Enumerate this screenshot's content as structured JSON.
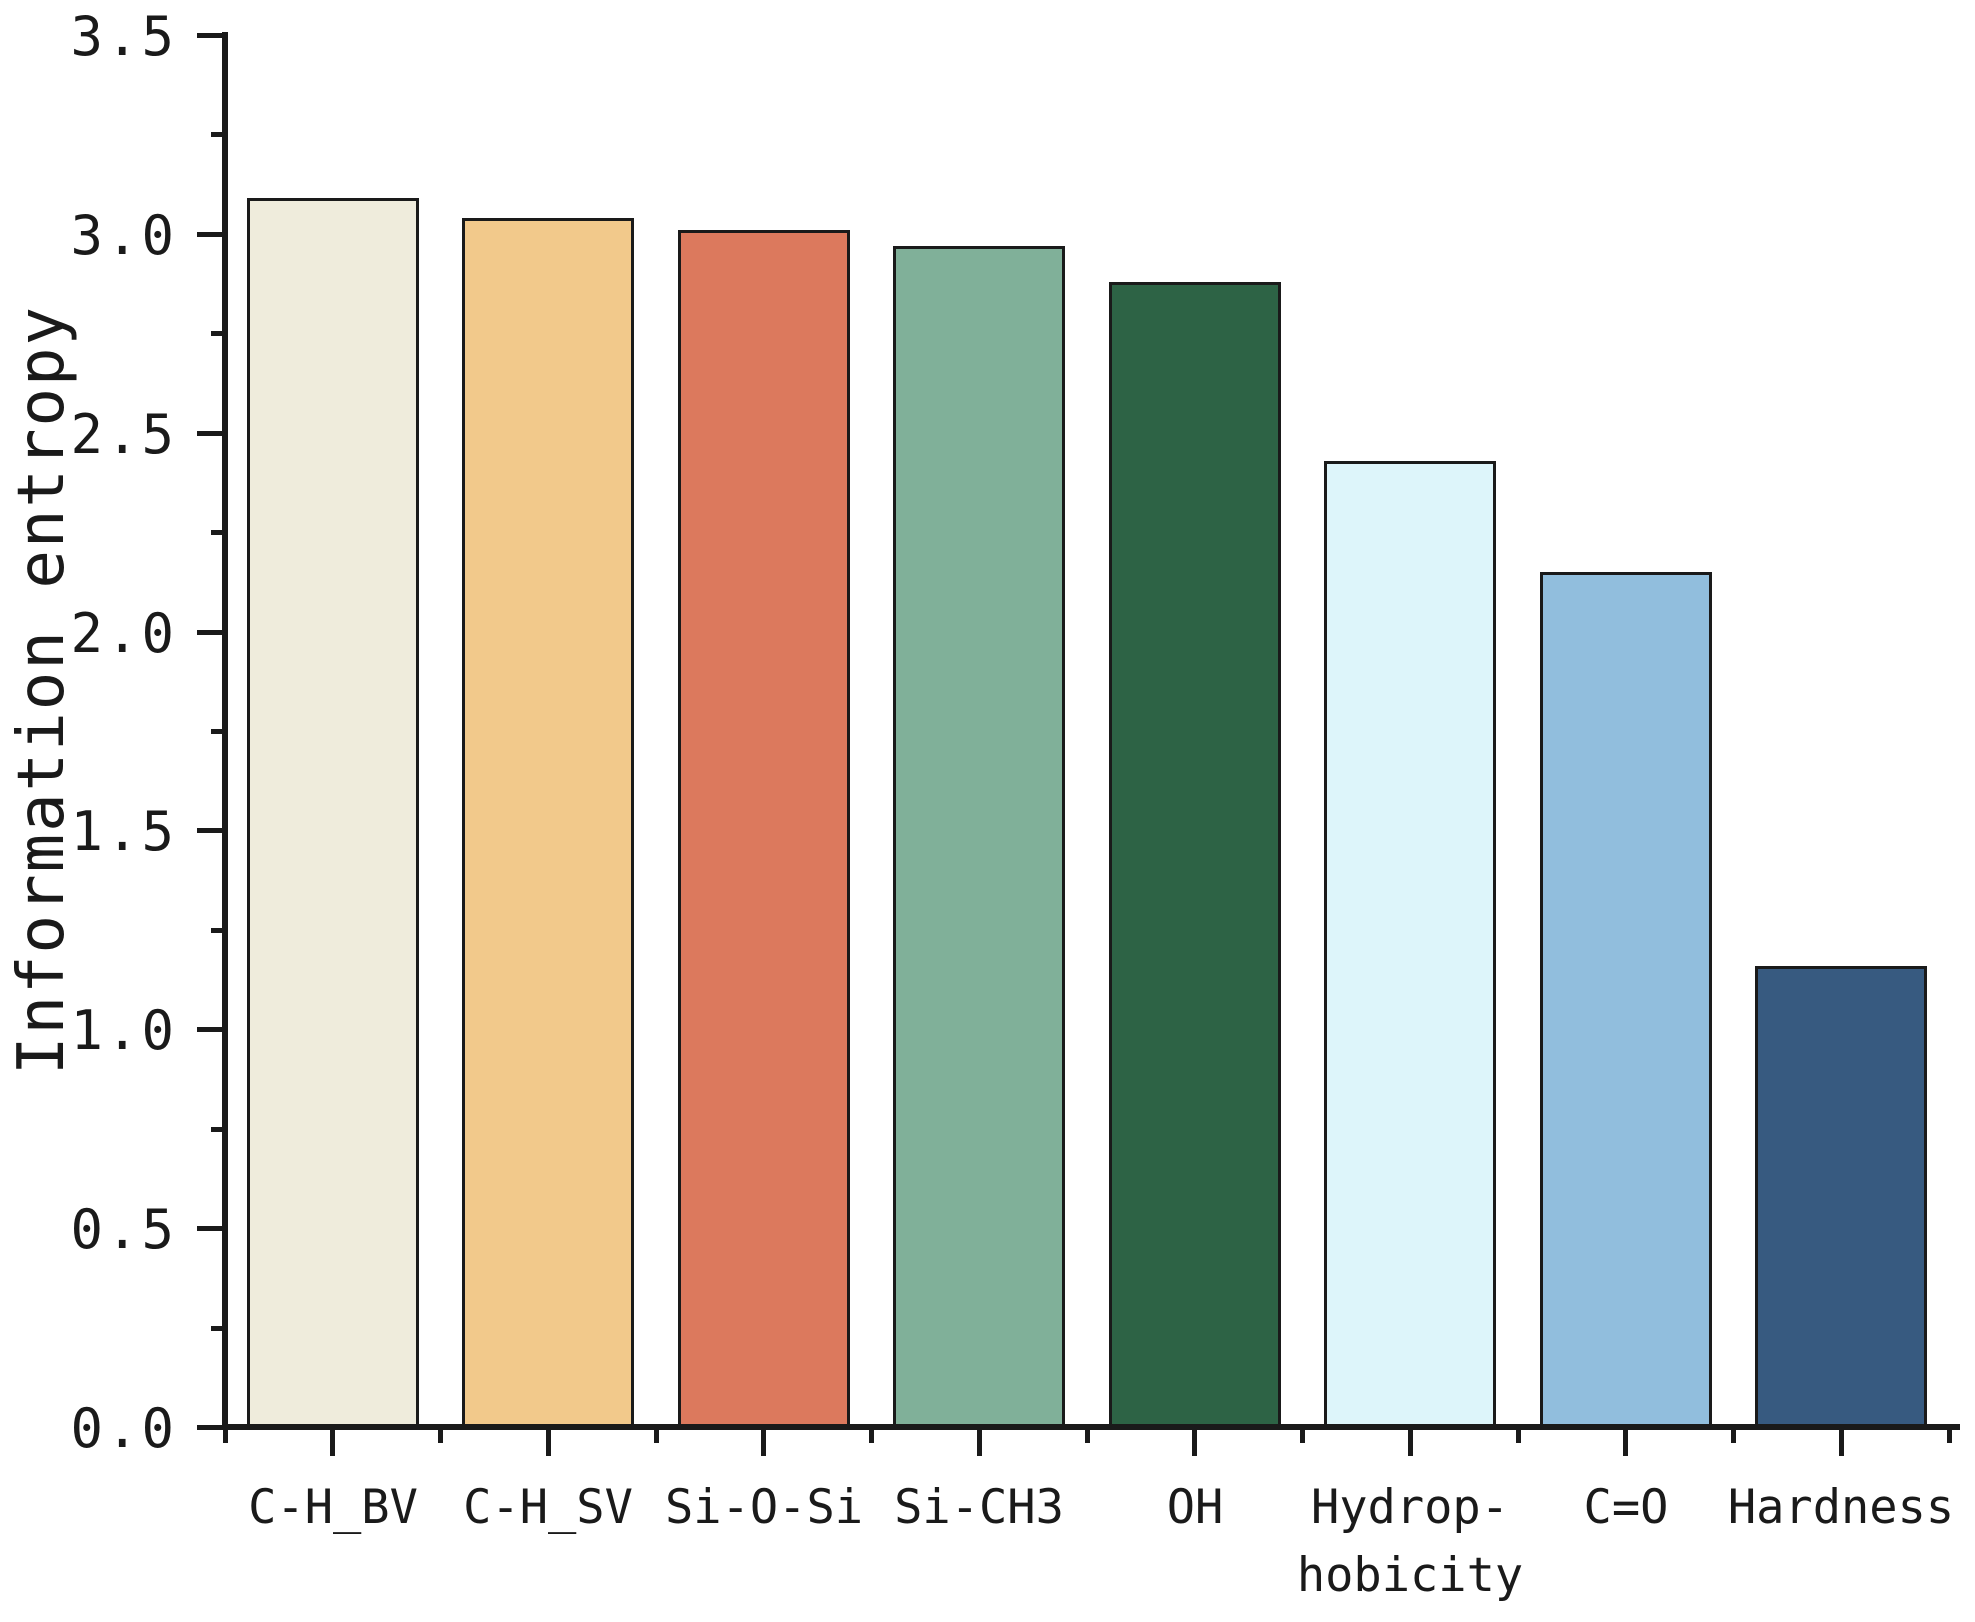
{
  "chart_data": {
    "type": "bar",
    "title": "",
    "xlabel": "",
    "ylabel": "Information entropy",
    "categories": [
      "C-H_BV",
      "C-H_SV",
      "Si-O-Si",
      "Si-CH3",
      "OH",
      "Hydrop-\nhobicity",
      "C=O",
      "Hardness"
    ],
    "values": [
      3.09,
      3.04,
      3.01,
      2.97,
      2.88,
      2.43,
      2.15,
      1.16
    ],
    "bar_colors": [
      "#efecdc",
      "#f2c98b",
      "#dc795d",
      "#80b099",
      "#2d6345",
      "#ddf5fa",
      "#91bedd",
      "#375a80"
    ],
    "bar_border_color": "#1a1a1a",
    "axis_color": "#1a1a1a",
    "ylim": [
      0.0,
      3.5
    ],
    "y_major_step": 0.5,
    "y_minor_step": 0.25,
    "y_tick_labels": [
      "0.0",
      "0.5",
      "1.0",
      "1.5",
      "2.0",
      "2.5",
      "3.0",
      "3.5"
    ],
    "grid": false,
    "legend": "none",
    "bar_orientation": "vertical"
  }
}
